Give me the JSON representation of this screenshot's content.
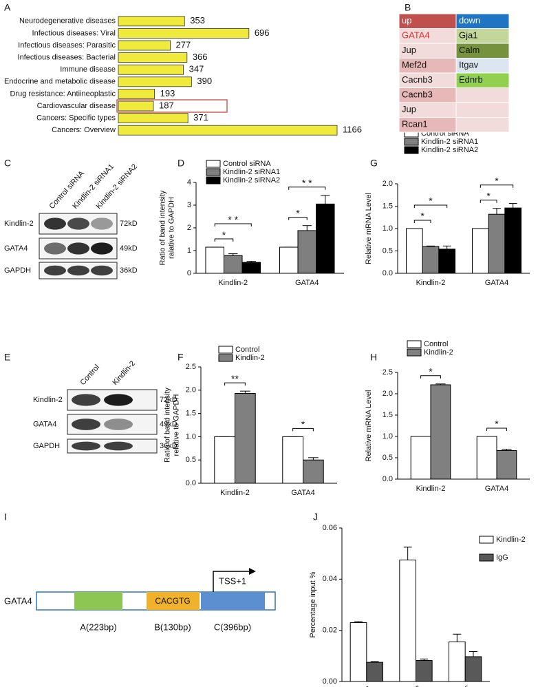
{
  "panel_labels": [
    "A",
    "B",
    "C",
    "D",
    "E",
    "F",
    "G",
    "H",
    "I",
    "J"
  ],
  "chart_data": [
    {
      "type": "hbar",
      "categories": [
        "Neurodegenerative diseases",
        "Infectious diseases: Viral",
        "Infectious diseases: Parasitic",
        "Infectious diseases: Bacterial",
        "Immune disease",
        "Endocrine and metabolic disease",
        "Drug resistance: Antiineoplastic",
        "Cardiovascular disease",
        "Cancers: Specific types",
        "Cancers: Overview"
      ],
      "values": [
        353,
        696,
        277,
        366,
        347,
        390,
        193,
        187,
        371,
        1166
      ],
      "color": "#f0ea3c",
      "highlight": 7,
      "highlight_color": "#c0392b"
    },
    {
      "type": "bar",
      "ylabel": [
        "Ratio of band intensity",
        "ralative to GAPDH"
      ],
      "categories": [
        "Kindlin-2",
        "GATA4"
      ],
      "series": [
        {
          "name": "Control siRNA",
          "color": "#ffffff",
          "values": [
            1.15,
            1.15
          ],
          "errors": [
            0,
            0
          ]
        },
        {
          "name": "Kindlin-2 siRNA1",
          "color": "#7f7f7f",
          "values": [
            0.78,
            1.88
          ],
          "errors": [
            0.08,
            0.22
          ]
        },
        {
          "name": "Kindlin-2 siRNA2",
          "color": "#000000",
          "values": [
            0.48,
            3.05
          ],
          "errors": [
            0.05,
            0.38
          ]
        }
      ],
      "ylim": [
        0,
        4
      ],
      "yticks": [
        0,
        1,
        2,
        3,
        4
      ],
      "annotations": [
        {
          "text": "*",
          "category": 0,
          "from": 0,
          "to": 1
        },
        {
          "text": "* *",
          "category": 0,
          "from": 0,
          "to": 2
        },
        {
          "text": "*",
          "category": 1,
          "from": 0,
          "to": 1
        },
        {
          "text": "* *",
          "category": 1,
          "from": 0,
          "to": 2
        }
      ]
    },
    {
      "type": "bar",
      "ylabel": [
        "Relative mRNA Level"
      ],
      "categories": [
        "Kindlin-2",
        "GATA4"
      ],
      "series": [
        {
          "name": "Control siRNA",
          "color": "#ffffff",
          "values": [
            1,
            1
          ],
          "errors": [
            0,
            0
          ]
        },
        {
          "name": "Kindlin-2 siRNA1",
          "color": "#7f7f7f",
          "values": [
            0.6,
            1.32
          ],
          "errors": [
            0.01,
            0.13
          ]
        },
        {
          "name": "Kindlin-2 siRNA2",
          "color": "#000000",
          "values": [
            0.54,
            1.46
          ],
          "errors": [
            0.07,
            0.1
          ]
        }
      ],
      "ylim": [
        0,
        2
      ],
      "yticks": [
        {
          "value": 0,
          "label": "0.0"
        },
        0.5,
        {
          "value": 1,
          "label": "1.0"
        },
        1.5,
        {
          "value": 2,
          "label": "2.0"
        }
      ],
      "annotations": [
        {
          "text": "*",
          "category": 0,
          "from": 0,
          "to": 1
        },
        {
          "text": "*",
          "category": 0,
          "from": 0,
          "to": 2
        },
        {
          "text": "*",
          "category": 1,
          "from": 0,
          "to": 1
        },
        {
          "text": "*",
          "category": 1,
          "from": 0,
          "to": 2
        }
      ]
    },
    {
      "type": "bar",
      "ylabel": [
        "Ratio of band intensity",
        "relative to GAPDH"
      ],
      "categories": [
        "Kindlin-2",
        "GATA4"
      ],
      "series": [
        {
          "name": "Control",
          "color": "#ffffff",
          "values": [
            1,
            1
          ],
          "errors": [
            0,
            0
          ]
        },
        {
          "name": "Kindlin-2",
          "color": "#808080",
          "values": [
            1.93,
            0.5
          ],
          "errors": [
            0.05,
            0.05
          ]
        }
      ],
      "ylim": [
        0,
        2.5
      ],
      "yticks": [
        {
          "value": 0,
          "label": "0.0"
        },
        0.5,
        {
          "value": 1,
          "label": "1.0"
        },
        1.5,
        {
          "value": 2,
          "label": "2.0"
        },
        2.5
      ],
      "annotations": [
        {
          "text": "**",
          "category": 0,
          "from": 0,
          "to": 1
        },
        {
          "text": "*",
          "category": 1,
          "from": 0,
          "to": 1
        }
      ]
    },
    {
      "type": "bar",
      "ylabel": [
        "Relative mRNA Level"
      ],
      "categories": [
        "Kindlin-2",
        "GATA4"
      ],
      "series": [
        {
          "name": "Control",
          "color": "#ffffff",
          "values": [
            1,
            1
          ],
          "errors": [
            0,
            0
          ]
        },
        {
          "name": "Kindlin-2",
          "color": "#808080",
          "values": [
            2.21,
            0.67
          ],
          "errors": [
            0.02,
            0.03
          ]
        }
      ],
      "ylim": [
        0,
        2.5
      ],
      "yticks": [
        {
          "value": 0,
          "label": "0.0"
        },
        0.5,
        {
          "value": 1,
          "label": "1.0"
        },
        1.5,
        {
          "value": 2,
          "label": "2.0"
        },
        2.5
      ],
      "annotations": [
        {
          "text": "*",
          "category": 0,
          "from": 0,
          "to": 1
        },
        {
          "text": "*",
          "category": 1,
          "from": 0,
          "to": 1
        }
      ]
    },
    {
      "type": "bar",
      "ylabel": [
        "Percentage input %"
      ],
      "categories": [
        "ChIP-A",
        "ChIP-B",
        "ChIP-C"
      ],
      "series": [
        {
          "name": "Kindlin-2",
          "color": "#ffffff",
          "values": [
            0.023,
            0.0475,
            0.0155
          ],
          "errors": [
            0.0004,
            0.005,
            0.003
          ]
        },
        {
          "name": "IgG",
          "color": "#595959",
          "values": [
            0.0075,
            0.0082,
            0.0097
          ],
          "errors": [
            0.0003,
            0.0006,
            0.002
          ]
        }
      ],
      "ylim": [
        0,
        0.06
      ],
      "yticks": [
        {
          "value": 0,
          "label": "0.00"
        },
        0.02,
        0.04,
        0.06
      ]
    }
  ],
  "table": {
    "header": [
      "up",
      "down"
    ],
    "rows": [
      [
        "GATA4",
        "Gja1"
      ],
      [
        "Jup",
        "Calm"
      ],
      [
        "Mef2d",
        "Itgav"
      ],
      [
        "Cacnb3",
        "Ednrb"
      ],
      [
        "Cacnb3",
        null
      ],
      [
        "Jup",
        null
      ],
      [
        "Rcan1",
        null
      ]
    ]
  },
  "blots": [
    {
      "lanes": [
        "Control siRNA",
        "Kindlin-2 siRNA1",
        "Kindlin-2 siRNA2"
      ],
      "rows": [
        {
          "label": "Kindlin-2",
          "size": "72kD"
        },
        {
          "label": "GATA4",
          "size": "49kD"
        },
        {
          "label": "GAPDH",
          "size": "36kD"
        }
      ]
    },
    {
      "lanes": [
        "Control",
        "Kindlin-2"
      ],
      "rows": [
        {
          "label": "Kindlin-2",
          "size": "72kD"
        },
        {
          "label": "GATA4",
          "size": "49kD"
        },
        {
          "label": "GAPDH",
          "size": "36kD"
        }
      ]
    }
  ],
  "diagram": {
    "gene": "GATA4",
    "regions": [
      "A(223bp)",
      "B(130bp)",
      "C(396bp)"
    ],
    "motif": "CACGTG",
    "tss": "TSS+1"
  }
}
